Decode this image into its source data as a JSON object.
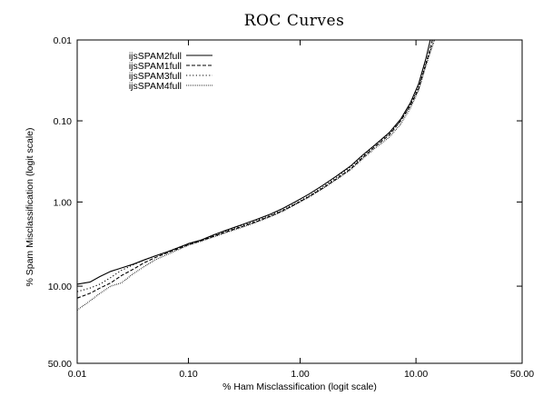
{
  "chart_data": {
    "type": "line",
    "title": "ROC Curves",
    "xlabel": "% Ham Misclassification (logit scale)",
    "ylabel": "% Spam Misclassification (logit scale)",
    "x_scale": "logit",
    "y_scale": "logit",
    "y_inverted": true,
    "xlim": [
      0.01,
      50.0
    ],
    "ylim": [
      50.0,
      0.01
    ],
    "x_ticks": [
      0.01,
      0.1,
      1.0,
      10.0,
      50.0
    ],
    "x_tick_labels": [
      "0.01",
      "0.10",
      "1.00",
      "10.00",
      "50.00"
    ],
    "y_ticks": [
      0.01,
      0.1,
      1.0,
      10.0,
      50.0
    ],
    "y_tick_labels": [
      "0.01",
      "0.10",
      "1.00",
      "10.00",
      "50.00"
    ],
    "grid": false,
    "legend_position": "top-left",
    "series": [
      {
        "name": "ijsSPAM2full",
        "style": "solid",
        "x": [
          0.01,
          0.013,
          0.016,
          0.02,
          0.025,
          0.032,
          0.04,
          0.05,
          0.065,
          0.08,
          0.1,
          0.13,
          0.17,
          0.22,
          0.3,
          0.4,
          0.55,
          0.7,
          0.9,
          1.2,
          1.6,
          2.1,
          2.8,
          3.5,
          4.5,
          6.0,
          7.5,
          9.0,
          10.5,
          12.0,
          13.0
        ],
        "y": [
          9.5,
          9.0,
          7.8,
          6.8,
          6.2,
          5.6,
          5.0,
          4.5,
          4.0,
          3.6,
          3.2,
          2.9,
          2.5,
          2.2,
          1.9,
          1.65,
          1.4,
          1.2,
          1.0,
          0.8,
          0.62,
          0.48,
          0.36,
          0.27,
          0.2,
          0.14,
          0.095,
          0.06,
          0.035,
          0.017,
          0.01
        ]
      },
      {
        "name": "ijsSPAM1full",
        "style": "dashed",
        "x": [
          0.01,
          0.013,
          0.016,
          0.02,
          0.025,
          0.032,
          0.04,
          0.05,
          0.065,
          0.08,
          0.1,
          0.13,
          0.17,
          0.22,
          0.3,
          0.4,
          0.55,
          0.7,
          0.9,
          1.2,
          1.6,
          2.1,
          2.8,
          3.5,
          4.5,
          6.0,
          7.5,
          9.0,
          10.5,
          12.0,
          13.5
        ],
        "y": [
          13.5,
          12.0,
          10.5,
          9.2,
          7.6,
          6.4,
          5.4,
          4.7,
          4.1,
          3.7,
          3.3,
          2.95,
          2.6,
          2.3,
          2.0,
          1.75,
          1.48,
          1.28,
          1.07,
          0.86,
          0.67,
          0.52,
          0.39,
          0.29,
          0.21,
          0.15,
          0.1,
          0.065,
          0.04,
          0.02,
          0.01
        ]
      },
      {
        "name": "ijsSPAM3full",
        "style": "dotted",
        "x": [
          0.01,
          0.013,
          0.016,
          0.02,
          0.025,
          0.032,
          0.04,
          0.05,
          0.065,
          0.08,
          0.1,
          0.13,
          0.17,
          0.22,
          0.3,
          0.4,
          0.55,
          0.7,
          0.9,
          1.2,
          1.6,
          2.1,
          2.8,
          3.5,
          4.5,
          6.0,
          7.5,
          9.0,
          10.5,
          12.0,
          14.0
        ],
        "y": [
          11.5,
          10.5,
          9.5,
          8.0,
          6.6,
          5.7,
          5.0,
          4.5,
          4.0,
          3.6,
          3.25,
          2.9,
          2.55,
          2.25,
          1.95,
          1.7,
          1.45,
          1.25,
          1.05,
          0.84,
          0.65,
          0.5,
          0.37,
          0.28,
          0.2,
          0.145,
          0.1,
          0.063,
          0.038,
          0.019,
          0.01
        ]
      },
      {
        "name": "ijsSPAM4full",
        "style": "dense-dotted",
        "x": [
          0.01,
          0.013,
          0.016,
          0.02,
          0.025,
          0.032,
          0.04,
          0.05,
          0.065,
          0.08,
          0.1,
          0.13,
          0.17,
          0.22,
          0.3,
          0.4,
          0.55,
          0.7,
          0.9,
          1.2,
          1.6,
          2.1,
          2.8,
          3.5,
          4.5,
          6.0,
          7.5,
          9.0,
          10.5,
          12.0,
          14.0
        ],
        "y": [
          18.0,
          14.5,
          12.0,
          10.0,
          9.2,
          7.2,
          6.0,
          5.0,
          4.3,
          3.8,
          3.35,
          3.0,
          2.65,
          2.35,
          2.05,
          1.78,
          1.5,
          1.3,
          1.08,
          0.87,
          0.68,
          0.53,
          0.4,
          0.3,
          0.22,
          0.16,
          0.11,
          0.07,
          0.042,
          0.021,
          0.01
        ]
      }
    ]
  }
}
